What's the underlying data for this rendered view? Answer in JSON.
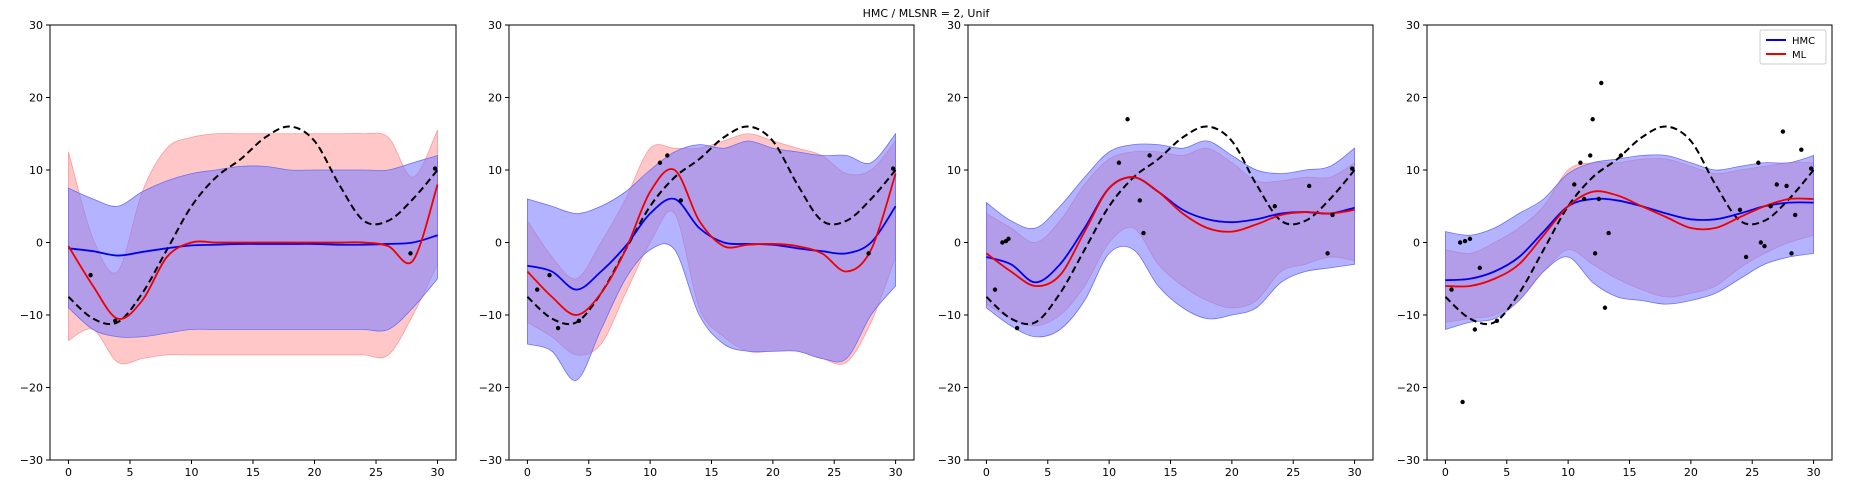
{
  "figure": {
    "title": "HMC / MLSNR = 2, Unif"
  },
  "colors": {
    "hmc": "#0000ee",
    "ml": "#ee0000",
    "truth": "#000000",
    "hmc_band": "#8080ff",
    "ml_band": "#ff9999",
    "points": "#000000"
  },
  "chart_data": [
    {
      "type": "line",
      "xlim": [
        -1.5,
        31.5
      ],
      "ylim": [
        -30,
        30
      ],
      "xticks": [
        0,
        5,
        10,
        15,
        20,
        25,
        30
      ],
      "xtick_labels": [
        "0",
        "5",
        "10",
        "15",
        "20",
        "25",
        "30"
      ],
      "yticks": [
        -30,
        -20,
        -10,
        0,
        10,
        20,
        30
      ],
      "ytick_labels": [
        "−30",
        "−20",
        "−10",
        "0",
        "10",
        "20",
        "30"
      ],
      "grid": false,
      "x": [
        0,
        2,
        4,
        6,
        8,
        10,
        12,
        14,
        16,
        18,
        20,
        22,
        24,
        26,
        28,
        30
      ],
      "truth": [
        -7.5,
        -10.5,
        -11,
        -7,
        -1,
        5,
        9,
        11.5,
        14.5,
        16,
        14,
        8,
        3,
        3,
        6,
        10
      ],
      "series": [
        {
          "name": "HMC",
          "values": [
            -0.8,
            -1.2,
            -1.8,
            -1.3,
            -0.8,
            -0.4,
            -0.3,
            -0.2,
            -0.2,
            -0.2,
            -0.2,
            -0.3,
            -0.3,
            -0.2,
            0,
            1
          ],
          "band_lower": [
            -9,
            -12,
            -13,
            -13,
            -12.5,
            -12,
            -12,
            -12,
            -12,
            -12,
            -12,
            -12,
            -12,
            -12,
            -9,
            -5
          ],
          "band_upper": [
            7.5,
            6,
            5,
            7,
            8.5,
            9.5,
            10,
            10.5,
            10.5,
            10,
            10,
            10,
            10,
            10,
            11,
            12
          ]
        },
        {
          "name": "ML",
          "values": [
            -0.5,
            -6,
            -10.5,
            -8,
            -2,
            0,
            0,
            0,
            0,
            0,
            0,
            0,
            0,
            -0.5,
            -2.5,
            8
          ],
          "band_lower": [
            -13.5,
            -12,
            -16.5,
            -16,
            -15.5,
            -15.5,
            -15.5,
            -15.5,
            -15.5,
            -15.5,
            -15.5,
            -15.5,
            -15.5,
            -15.5,
            -10,
            -3
          ],
          "band_upper": [
            12.5,
            0.5,
            -4,
            7,
            13,
            14.5,
            15,
            15,
            15,
            15,
            15,
            15,
            15,
            14.5,
            9,
            15.5
          ]
        }
      ],
      "points": {
        "x": [
          1.8,
          3.8,
          27.8,
          29.8
        ],
        "y": [
          -4.5,
          -10.8,
          -1.5,
          10.2
        ]
      }
    },
    {
      "type": "line",
      "xlim": [
        -1.5,
        31.5
      ],
      "ylim": [
        -30,
        30
      ],
      "xticks": [
        0,
        5,
        10,
        15,
        20,
        25,
        30
      ],
      "xtick_labels": [
        "0",
        "5",
        "10",
        "15",
        "20",
        "25",
        "30"
      ],
      "yticks": [
        -30,
        -20,
        -10,
        0,
        10,
        20,
        30
      ],
      "ytick_labels": [
        "−30",
        "−20",
        "−10",
        "0",
        "10",
        "20",
        "30"
      ],
      "grid": false,
      "x": [
        0,
        2,
        4,
        6,
        8,
        10,
        12,
        14,
        16,
        18,
        20,
        22,
        24,
        26,
        28,
        30
      ],
      "truth": [
        -7.5,
        -10.5,
        -11,
        -7,
        -1,
        5,
        9,
        11.5,
        14.5,
        16,
        14,
        8,
        3,
        3,
        6,
        10
      ],
      "series": [
        {
          "name": "HMC",
          "values": [
            -3.2,
            -4,
            -6.5,
            -4,
            -0.5,
            4,
            6,
            2,
            0,
            -0.2,
            -0.3,
            -0.8,
            -1.2,
            -1.5,
            0,
            5
          ],
          "band_lower": [
            -14,
            -15,
            -19,
            -12,
            -5,
            -1,
            -1,
            -10,
            -14,
            -15,
            -15,
            -15,
            -16,
            -16,
            -10,
            -6
          ],
          "band_upper": [
            6,
            5,
            4,
            5,
            7,
            10,
            12.5,
            13.5,
            13,
            14,
            13,
            12.5,
            12,
            12,
            11,
            15
          ]
        },
        {
          "name": "ML",
          "values": [
            -4,
            -7.5,
            -10,
            -7,
            -1,
            7,
            10,
            3,
            -0.5,
            -0.3,
            -0.2,
            -0.5,
            -1.5,
            -4,
            -1,
            9.5
          ],
          "band_lower": [
            -11,
            -13,
            -15.5,
            -14,
            -7,
            0,
            4,
            -9,
            -13,
            -15,
            -15,
            -15,
            -16,
            -16.5,
            -11,
            -2
          ],
          "band_upper": [
            3,
            -2,
            -5,
            0,
            6,
            13,
            13,
            13,
            14,
            15,
            14,
            13,
            12,
            9.5,
            10,
            14
          ]
        }
      ],
      "points": {
        "x": [
          0.8,
          1.8,
          2.5,
          4.2,
          10.8,
          11.4,
          12.5,
          27.8,
          29.8
        ],
        "y": [
          -6.5,
          -4.5,
          -11.8,
          -10.8,
          11,
          12,
          5.8,
          -1.5,
          10.2
        ]
      }
    },
    {
      "type": "line",
      "xlim": [
        -1.5,
        31.5
      ],
      "ylim": [
        -30,
        30
      ],
      "xticks": [
        0,
        5,
        10,
        15,
        20,
        25,
        30
      ],
      "xtick_labels": [
        "0",
        "5",
        "10",
        "15",
        "20",
        "25",
        "30"
      ],
      "yticks": [
        -30,
        -20,
        -10,
        0,
        10,
        20,
        30
      ],
      "ytick_labels": [
        "−30",
        "−20",
        "−10",
        "0",
        "10",
        "20",
        "30"
      ],
      "grid": false,
      "x": [
        0,
        2,
        4,
        6,
        8,
        10,
        12,
        14,
        16,
        18,
        20,
        22,
        24,
        26,
        28,
        30
      ],
      "truth": [
        -7.5,
        -10.5,
        -11,
        -7,
        -1,
        5,
        9,
        11.5,
        14.5,
        16,
        14,
        8,
        3,
        3,
        6,
        10
      ],
      "series": [
        {
          "name": "HMC",
          "values": [
            -2,
            -3,
            -5.5,
            -3,
            2,
            7.5,
            9,
            7,
            4.5,
            3.2,
            2.8,
            3.2,
            4,
            4.2,
            4,
            4.8
          ],
          "band_lower": [
            -9,
            -11.5,
            -13,
            -12,
            -8,
            -1.5,
            -1,
            -6,
            -9,
            -10.5,
            -10,
            -9,
            -5.5,
            -4,
            -3.5,
            -3
          ],
          "band_upper": [
            5.5,
            3,
            2,
            5,
            9,
            12.5,
            13.5,
            13.5,
            13,
            14,
            12,
            10,
            9.5,
            10,
            10.5,
            13
          ]
        },
        {
          "name": "ML",
          "values": [
            -1.5,
            -4,
            -6,
            -4.5,
            1.5,
            7.5,
            9,
            7,
            4,
            2,
            1.5,
            2.5,
            3.8,
            4.2,
            4,
            4.5
          ],
          "band_lower": [
            -8.5,
            -10.5,
            -11.5,
            -10,
            -6,
            0,
            2,
            -3,
            -6,
            -8,
            -9,
            -8,
            -4,
            -3,
            -2,
            -2.5
          ],
          "band_upper": [
            4,
            2,
            0,
            3,
            8,
            11.5,
            12.5,
            12.5,
            12,
            13,
            11,
            8.5,
            8.5,
            9,
            9,
            11
          ]
        }
      ],
      "points": {
        "x": [
          0.7,
          1.3,
          1.6,
          1.8,
          2.5,
          10.8,
          11.5,
          12.5,
          12.8,
          13.3,
          23.5,
          26.3,
          27.8,
          28.2,
          29.8
        ],
        "y": [
          -6.5,
          0,
          0.2,
          0.5,
          -11.8,
          11,
          17,
          5.8,
          1.3,
          12,
          5,
          7.8,
          -1.5,
          3.8,
          10.2
        ]
      }
    },
    {
      "type": "line",
      "xlim": [
        -1.5,
        31.5
      ],
      "ylim": [
        -30,
        30
      ],
      "xticks": [
        0,
        5,
        10,
        15,
        20,
        25,
        30
      ],
      "xtick_labels": [
        "0",
        "5",
        "10",
        "15",
        "20",
        "25",
        "30"
      ],
      "yticks": [
        -30,
        -20,
        -10,
        0,
        10,
        20,
        30
      ],
      "ytick_labels": [
        "−30",
        "−20",
        "−10",
        "0",
        "10",
        "20",
        "30"
      ],
      "grid": false,
      "legend": {
        "placement": "top-right",
        "entries": [
          "HMC",
          "ML"
        ]
      },
      "x": [
        0,
        2,
        4,
        6,
        8,
        10,
        12,
        14,
        16,
        18,
        20,
        22,
        24,
        26,
        28,
        30
      ],
      "truth": [
        -7.5,
        -10.5,
        -11,
        -7,
        -1,
        5,
        9,
        11.5,
        14.5,
        16,
        14,
        8,
        3,
        3,
        6,
        10
      ],
      "series": [
        {
          "name": "HMC",
          "values": [
            -5.2,
            -5,
            -4,
            -2,
            1.5,
            5,
            6,
            5.8,
            5,
            4,
            3.2,
            3.2,
            4,
            5,
            5.5,
            5.5
          ],
          "band_lower": [
            -12,
            -11,
            -10.5,
            -8,
            -4,
            -2,
            -5.5,
            -7.5,
            -8,
            -8.5,
            -8,
            -7,
            -5,
            -3,
            -2,
            -1.5
          ],
          "band_upper": [
            1.5,
            1,
            2,
            4,
            6,
            9.5,
            11,
            11.5,
            12,
            12,
            11,
            10,
            10.5,
            11,
            11,
            12
          ]
        },
        {
          "name": "ML",
          "values": [
            -6,
            -6,
            -5,
            -3,
            1,
            5,
            7,
            6.5,
            5,
            3.5,
            2,
            2,
            3.5,
            5,
            6,
            6
          ],
          "band_lower": [
            -11,
            -10.5,
            -10,
            -8,
            -4,
            -1,
            -3,
            -5,
            -6.5,
            -7.5,
            -7,
            -6,
            -3.5,
            -1.5,
            0,
            1
          ],
          "band_upper": [
            -1,
            -1.5,
            0,
            2,
            5,
            10,
            11,
            11,
            11.5,
            11.5,
            10.5,
            9.5,
            10,
            10.5,
            11,
            11
          ]
        }
      ],
      "points": {
        "x": [
          0.5,
          1.2,
          1.4,
          1.6,
          2,
          2.4,
          2.8,
          4.2,
          10.5,
          11,
          11.3,
          11.8,
          12,
          12.2,
          12.5,
          12.7,
          13,
          13.3,
          14.3,
          24,
          24.5,
          25.5,
          25.7,
          26,
          26.5,
          27,
          27.5,
          27.8,
          28.2,
          28.5,
          29,
          29.8
        ],
        "y": [
          -6.5,
          0,
          -22,
          0.2,
          0.5,
          -12,
          -3.5,
          -10.8,
          8,
          11,
          6,
          12,
          17,
          -1.5,
          6,
          22,
          -9,
          1.3,
          12,
          4.5,
          -2,
          11,
          0,
          -0.5,
          5,
          8,
          15.3,
          7.8,
          -1.5,
          3.8,
          12.8,
          10.2
        ]
      }
    }
  ]
}
